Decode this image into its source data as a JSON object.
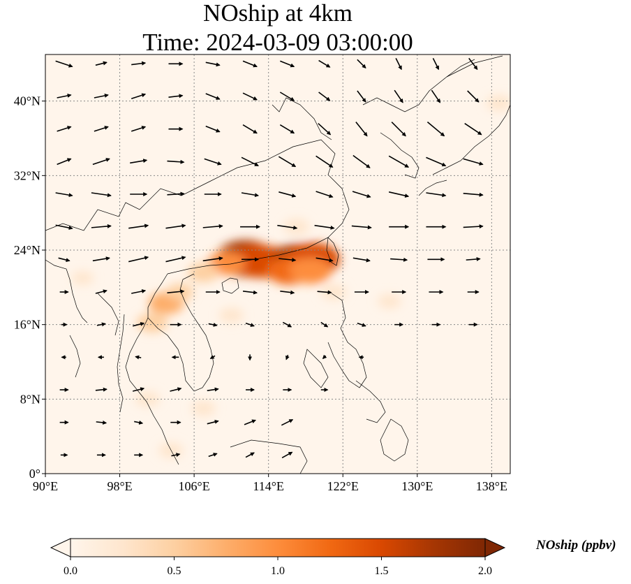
{
  "title": {
    "line1": "NOship at 4km",
    "line2": "Time: 2024-03-09 03:00:00"
  },
  "map": {
    "projection": "PlateCarree",
    "lon_range": [
      90,
      140
    ],
    "lat_range": [
      0,
      45
    ],
    "gridlines": "dotted gray",
    "x_tick_labels": [
      {
        "value": 90,
        "label": "90°E"
      },
      {
        "value": 98,
        "label": "98°E"
      },
      {
        "value": 106,
        "label": "106°E"
      },
      {
        "value": 114,
        "label": "114°E"
      },
      {
        "value": 122,
        "label": "122°E"
      },
      {
        "value": 130,
        "label": "130°E"
      },
      {
        "value": 138,
        "label": "138°E"
      }
    ],
    "y_tick_labels": [
      {
        "value": 0,
        "label": "0°"
      },
      {
        "value": 8,
        "label": "8°N"
      },
      {
        "value": 16,
        "label": "16°N"
      },
      {
        "value": 24,
        "label": "24°N"
      },
      {
        "value": 32,
        "label": "32°N"
      },
      {
        "value": 40,
        "label": "40°N"
      }
    ],
    "background_color": "#fff5eb",
    "land_line_color": "#000000",
    "concentration_blobs": [
      {
        "lon": 111.5,
        "lat": 23.1,
        "value": 1.8
      },
      {
        "lon": 113.0,
        "lat": 22.8,
        "value": 1.6
      },
      {
        "lon": 115.0,
        "lat": 22.6,
        "value": 1.5
      },
      {
        "lon": 117.3,
        "lat": 22.8,
        "value": 1.7
      },
      {
        "lon": 118.8,
        "lat": 23.0,
        "value": 1.6
      },
      {
        "lon": 116.2,
        "lat": 21.8,
        "value": 1.2
      },
      {
        "lon": 118.5,
        "lat": 21.8,
        "value": 1.1
      },
      {
        "lon": 109.5,
        "lat": 22.6,
        "value": 0.9
      },
      {
        "lon": 107.0,
        "lat": 21.6,
        "value": 0.6
      },
      {
        "lon": 103.0,
        "lat": 18.3,
        "value": 0.8
      },
      {
        "lon": 101.5,
        "lat": 16.2,
        "value": 0.6
      },
      {
        "lon": 104.5,
        "lat": 19.5,
        "value": 0.4
      },
      {
        "lon": 117.0,
        "lat": 26.5,
        "value": 0.35
      },
      {
        "lon": 110.0,
        "lat": 17.0,
        "value": 0.3
      },
      {
        "lon": 121.0,
        "lat": 19.5,
        "value": 0.35
      },
      {
        "lon": 127.0,
        "lat": 18.5,
        "value": 0.25
      },
      {
        "lon": 138.8,
        "lat": 39.8,
        "value": 0.35
      },
      {
        "lon": 107.0,
        "lat": 7.0,
        "value": 0.3
      },
      {
        "lon": 101.0,
        "lat": 8.0,
        "value": 0.3
      },
      {
        "lon": 94.0,
        "lat": 21.0,
        "value": 0.2
      },
      {
        "lon": 103.5,
        "lat": 2.5,
        "value": 0.3
      }
    ],
    "wind_vectors": {
      "note_units": "u, v components",
      "grid": [
        [
          92,
          44,
          3,
          -1
        ],
        [
          96,
          44,
          2,
          0.5
        ],
        [
          100,
          44,
          2.5,
          0.3
        ],
        [
          104,
          44,
          2.5,
          0
        ],
        [
          108,
          44,
          2.5,
          -0.5
        ],
        [
          112,
          44,
          2.5,
          -1
        ],
        [
          116,
          44,
          2.5,
          -1
        ],
        [
          120,
          44,
          2,
          -1.2
        ],
        [
          124,
          44,
          1.5,
          -1.5
        ],
        [
          128,
          44,
          1,
          -2
        ],
        [
          132,
          44,
          1,
          -2
        ],
        [
          136,
          44,
          1.5,
          -2
        ],
        [
          92,
          40.5,
          2.5,
          0.5
        ],
        [
          96,
          40.5,
          2.5,
          0.5
        ],
        [
          100,
          40.5,
          2.5,
          0.8
        ],
        [
          104,
          40.5,
          2.5,
          0.3
        ],
        [
          108,
          40.5,
          2.5,
          -1
        ],
        [
          112,
          40.5,
          2.5,
          -1.2
        ],
        [
          116,
          40.5,
          2.5,
          -1.5
        ],
        [
          120,
          40.5,
          2,
          -1.5
        ],
        [
          124,
          40.5,
          1.5,
          -2
        ],
        [
          128,
          40.5,
          1.5,
          -2.2
        ],
        [
          132,
          40.5,
          1.5,
          -2.2
        ],
        [
          136,
          40.5,
          2,
          -2
        ],
        [
          92,
          37,
          2.5,
          0.8
        ],
        [
          96,
          37,
          2.5,
          0.8
        ],
        [
          100,
          37,
          2.5,
          0.8
        ],
        [
          104,
          37,
          2.5,
          0
        ],
        [
          108,
          37,
          2.5,
          -1
        ],
        [
          112,
          37,
          2.5,
          -1.5
        ],
        [
          116,
          37,
          2.5,
          -1.5
        ],
        [
          120,
          37,
          2.2,
          -2
        ],
        [
          124,
          37,
          2,
          -2.5
        ],
        [
          128,
          37,
          2.5,
          -2.5
        ],
        [
          132,
          37,
          3,
          -2.5
        ],
        [
          136,
          37,
          3,
          -2
        ],
        [
          92,
          33.5,
          2.5,
          1
        ],
        [
          96,
          33.5,
          3,
          1
        ],
        [
          100,
          33.5,
          3,
          0.5
        ],
        [
          104,
          33.5,
          3,
          -0.2
        ],
        [
          108,
          33.5,
          3,
          -1
        ],
        [
          112,
          33.5,
          3,
          -1.5
        ],
        [
          116,
          33.5,
          3,
          -1.8
        ],
        [
          120,
          33.5,
          3,
          -2
        ],
        [
          124,
          33.5,
          3,
          -2.2
        ],
        [
          128,
          33.5,
          3.5,
          -2
        ],
        [
          132,
          33.5,
          3.5,
          -1.5
        ],
        [
          136,
          33.5,
          3.5,
          -1
        ],
        [
          92,
          30,
          3,
          -0.5
        ],
        [
          96,
          30,
          3.5,
          -0.5
        ],
        [
          100,
          30,
          3,
          0
        ],
        [
          104,
          30,
          3,
          0.2
        ],
        [
          108,
          30,
          3,
          0
        ],
        [
          112,
          30,
          3,
          -0.5
        ],
        [
          116,
          30,
          3,
          -0.8
        ],
        [
          120,
          30,
          3,
          -1
        ],
        [
          124,
          30,
          3.2,
          -1
        ],
        [
          128,
          30,
          3.5,
          -0.8
        ],
        [
          132,
          30,
          3.5,
          -0.5
        ],
        [
          136,
          30,
          3.5,
          -0.3
        ],
        [
          92,
          26.5,
          3,
          -0.6
        ],
        [
          96,
          26.5,
          3.5,
          0.3
        ],
        [
          100,
          26.5,
          3.5,
          0.5
        ],
        [
          104,
          26.5,
          3.5,
          0.5
        ],
        [
          108,
          26.5,
          3.5,
          0.3
        ],
        [
          112,
          26.5,
          3.5,
          0
        ],
        [
          116,
          26.5,
          3.5,
          -0.5
        ],
        [
          120,
          26.5,
          3.5,
          -0.5
        ],
        [
          124,
          26.5,
          3.5,
          -0.3
        ],
        [
          128,
          26.5,
          3.5,
          0
        ],
        [
          132,
          26.5,
          3.5,
          0
        ],
        [
          136,
          26.5,
          3.5,
          0.2
        ],
        [
          92,
          23,
          2,
          -0.5
        ],
        [
          96,
          23,
          3,
          0.5
        ],
        [
          100,
          23,
          3.5,
          0.8
        ],
        [
          104,
          23,
          3.5,
          0.8
        ],
        [
          108,
          23,
          3.5,
          0.5
        ],
        [
          112,
          23,
          3,
          0
        ],
        [
          116,
          23,
          3,
          -0.3
        ],
        [
          120,
          23,
          3,
          -0.5
        ],
        [
          124,
          23,
          3,
          -0.5
        ],
        [
          128,
          23,
          3,
          -0.2
        ],
        [
          132,
          23,
          3,
          0
        ],
        [
          136,
          23,
          2.5,
          0.2
        ],
        [
          92,
          19.5,
          1.5,
          0
        ],
        [
          96,
          19.5,
          2,
          0.5
        ],
        [
          100,
          19.5,
          2.5,
          0.5
        ],
        [
          104,
          19.5,
          3,
          0.3
        ],
        [
          108,
          19.5,
          2.5,
          0
        ],
        [
          112,
          19.5,
          2.5,
          -0.3
        ],
        [
          116,
          19.5,
          2.5,
          -0.3
        ],
        [
          120,
          19.5,
          2.5,
          -0.2
        ],
        [
          124,
          19.5,
          2.5,
          0
        ],
        [
          128,
          19.5,
          2.5,
          0
        ],
        [
          132,
          19.5,
          2.5,
          0
        ],
        [
          136,
          19.5,
          2,
          0
        ],
        [
          92,
          16,
          1,
          0
        ],
        [
          96,
          16,
          1.5,
          0.3
        ],
        [
          100,
          16,
          2,
          0.5
        ],
        [
          104,
          16,
          2,
          0
        ],
        [
          108,
          16,
          1.5,
          -0.3
        ],
        [
          112,
          16,
          1.5,
          -0.5
        ],
        [
          116,
          16,
          1.5,
          -0.8
        ],
        [
          120,
          16,
          1.2,
          -0.8
        ],
        [
          124,
          16,
          1.5,
          -0.5
        ],
        [
          128,
          16,
          1.5,
          0
        ],
        [
          132,
          16,
          1.5,
          0
        ],
        [
          136,
          16,
          1.5,
          0
        ],
        [
          92,
          12.5,
          -0.8,
          0
        ],
        [
          96,
          12.5,
          -1,
          0
        ],
        [
          100,
          12.5,
          -1,
          0.2
        ],
        [
          104,
          12.5,
          -1.2,
          0
        ],
        [
          108,
          12.5,
          -0.8,
          -0.5
        ],
        [
          112,
          12.5,
          0,
          -1
        ],
        [
          116,
          12.5,
          -0.3,
          -0.8
        ],
        [
          120,
          12.5,
          -0.5,
          -0.5
        ],
        [
          124,
          12.5,
          -0.8,
          0
        ],
        [
          92,
          9,
          1.5,
          0
        ],
        [
          96,
          9,
          2,
          0.2
        ],
        [
          100,
          9,
          2,
          0.5
        ],
        [
          104,
          9,
          2,
          0.5
        ],
        [
          108,
          9,
          2,
          0.3
        ],
        [
          112,
          9,
          1.5,
          0
        ],
        [
          116,
          9,
          1.5,
          0
        ],
        [
          120,
          9,
          1.2,
          0
        ],
        [
          92,
          5.5,
          1.5,
          0
        ],
        [
          96,
          5.5,
          1.8,
          -0.2
        ],
        [
          100,
          5.5,
          1.5,
          -0.3
        ],
        [
          104,
          5.5,
          1.8,
          0
        ],
        [
          108,
          5.5,
          2,
          0.5
        ],
        [
          112,
          5.5,
          2,
          0.8
        ],
        [
          116,
          5.5,
          2,
          1
        ],
        [
          92,
          2,
          1.2,
          0
        ],
        [
          96,
          2,
          1.5,
          0
        ],
        [
          100,
          2,
          1.5,
          0
        ],
        [
          104,
          2,
          1.5,
          0.3
        ],
        [
          108,
          2,
          1.5,
          0.5
        ],
        [
          112,
          2,
          1.5,
          0.8
        ],
        [
          116,
          2,
          1.8,
          1
        ]
      ]
    }
  },
  "colorbar": {
    "label": "NOship (ppbv)",
    "min": 0.0,
    "max": 2.0,
    "extend": "both",
    "ticks": [
      {
        "value": 0.0,
        "label": "0.0"
      },
      {
        "value": 0.5,
        "label": "0.5"
      },
      {
        "value": 1.0,
        "label": "1.0"
      },
      {
        "value": 1.5,
        "label": "1.5"
      },
      {
        "value": 2.0,
        "label": "2.0"
      }
    ],
    "colormap": [
      "#fff5eb",
      "#fee6ce",
      "#fdd0a2",
      "#fdae6b",
      "#fd8d3c",
      "#f16913",
      "#d94801",
      "#a63603",
      "#7f2704"
    ]
  }
}
